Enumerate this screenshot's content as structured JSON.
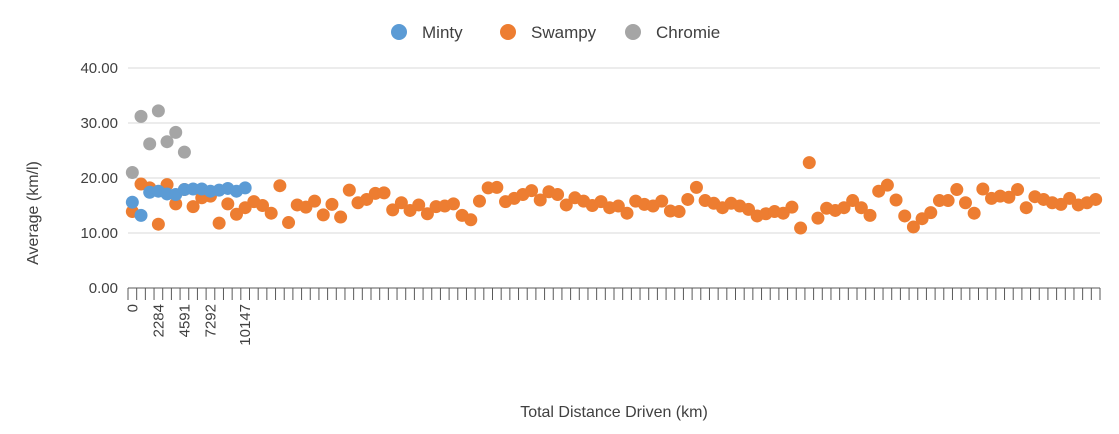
{
  "chart_data": {
    "type": "scatter",
    "title": "",
    "xlabel": "Total Distance Driven (km)",
    "ylabel": "Average (km/l)",
    "ylim": [
      0,
      40
    ],
    "yticks": [
      "0.00",
      "10.00",
      "20.00",
      "30.00",
      "40.00"
    ],
    "xtick_labels": [
      {
        "index": 0,
        "text": "0"
      },
      {
        "index": 3,
        "text": "2284"
      },
      {
        "index": 6,
        "text": "4591"
      },
      {
        "index": 9,
        "text": "7292"
      },
      {
        "index": 13,
        "text": "10147"
      }
    ],
    "category_count": 112,
    "grid": true,
    "legend_position": "top",
    "series": [
      {
        "name": "Minty",
        "color": "#5b9bd5",
        "values": [
          15.6,
          13.2,
          17.4,
          17.6,
          17.1,
          17.0,
          17.9,
          18.0,
          18.0,
          17.6,
          17.8,
          18.1,
          17.6,
          18.2
        ]
      },
      {
        "name": "Swampy",
        "color": "#ed7d31",
        "values": [
          13.9,
          18.9,
          18.2,
          11.6,
          18.8,
          15.3,
          17.9,
          14.8,
          16.4,
          16.7,
          11.8,
          15.3,
          13.4,
          14.6,
          15.7,
          15.0,
          13.6,
          18.6,
          11.9,
          15.1,
          14.7,
          15.8,
          13.3,
          15.2,
          12.9,
          17.8,
          15.5,
          16.1,
          17.2,
          17.3,
          14.2,
          15.5,
          14.1,
          15.1,
          13.5,
          14.8,
          14.9,
          15.3,
          13.2,
          12.4,
          15.8,
          18.2,
          18.3,
          15.7,
          16.3,
          17.0,
          17.7,
          16.0,
          17.5,
          17.0,
          15.1,
          16.4,
          15.8,
          15.0,
          15.7,
          14.6,
          14.9,
          13.6,
          15.8,
          15.2,
          14.9,
          15.8,
          14.0,
          13.9,
          16.1,
          18.3,
          15.9,
          15.4,
          14.6,
          15.4,
          14.9,
          14.3,
          13.1,
          13.5,
          13.9,
          13.6,
          14.7,
          10.9,
          22.8,
          12.7,
          14.5,
          14.1,
          14.6,
          15.9,
          14.6,
          13.2,
          17.6,
          18.7,
          16.0,
          13.1,
          11.1,
          12.6,
          13.7,
          15.9,
          15.9,
          17.9,
          15.5,
          13.6,
          18.0,
          16.3,
          16.7,
          16.5,
          17.9,
          14.6,
          16.6,
          16.1,
          15.5,
          15.2,
          16.3,
          15.1,
          15.5,
          16.1
        ]
      },
      {
        "name": "Chromie",
        "color": "#a5a5a5",
        "values": [
          21.0,
          31.2,
          26.2,
          32.2,
          26.6,
          28.3,
          24.7
        ]
      }
    ]
  }
}
